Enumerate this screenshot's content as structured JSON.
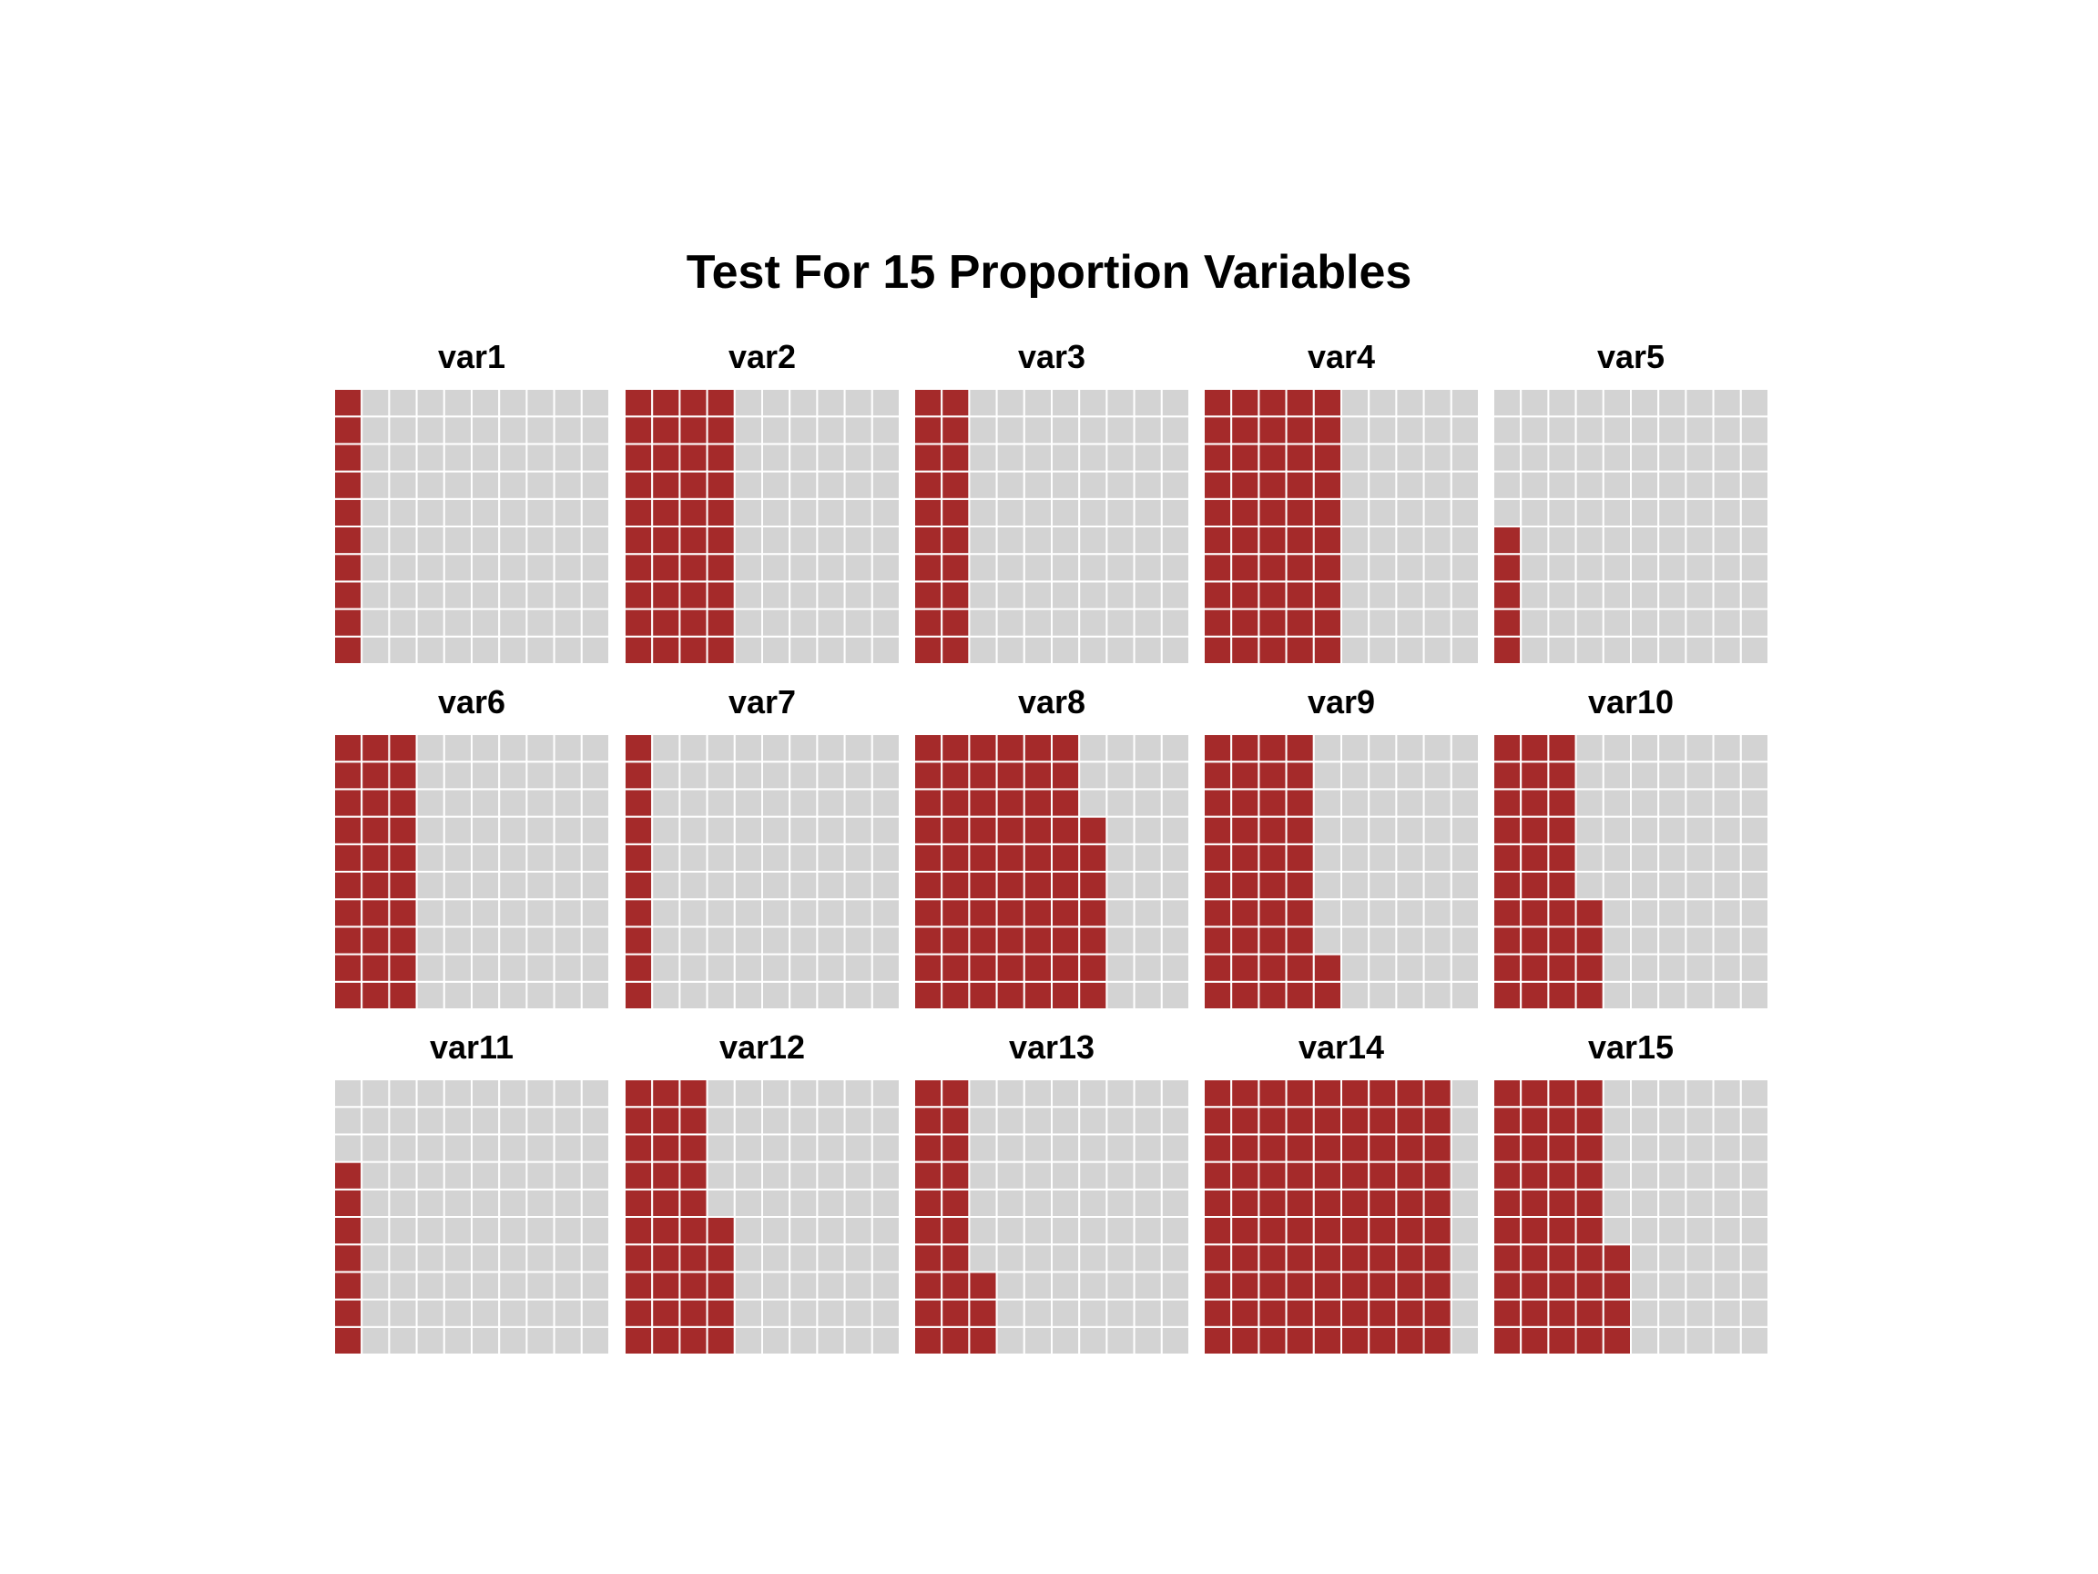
{
  "chart_data": {
    "type": "waffle",
    "title": "Test For 15 Proportion Variables",
    "grid": {
      "rows": 10,
      "cols": 10
    },
    "fill_order": "column-wise from bottom-left",
    "panels": [
      {
        "name": "var1",
        "value": 10
      },
      {
        "name": "var2",
        "value": 40
      },
      {
        "name": "var3",
        "value": 20
      },
      {
        "name": "var4",
        "value": 50
      },
      {
        "name": "var5",
        "value": 5
      },
      {
        "name": "var6",
        "value": 30
      },
      {
        "name": "var7",
        "value": 10
      },
      {
        "name": "var8",
        "value": 67
      },
      {
        "name": "var9",
        "value": 42
      },
      {
        "name": "var10",
        "value": 34
      },
      {
        "name": "var11",
        "value": 7
      },
      {
        "name": "var12",
        "value": 35
      },
      {
        "name": "var13",
        "value": 23
      },
      {
        "name": "var14",
        "value": 90
      },
      {
        "name": "var15",
        "value": 44
      }
    ],
    "colors": {
      "filled": "#a52a2a",
      "empty": "#d3d3d3",
      "cell_border": "#ffffff"
    }
  }
}
